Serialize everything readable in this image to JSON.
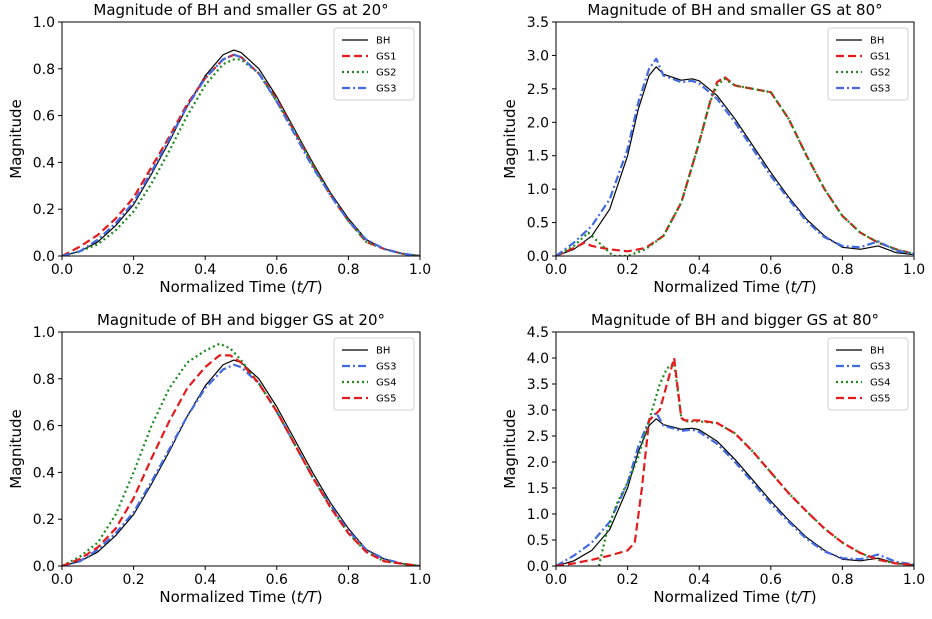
{
  "chart_data": [
    {
      "type": "line",
      "title": "Magnitude of BH and smaller GS at 20°",
      "xlabel": "Normalized Time (t/T)",
      "ylabel": "Magnitude",
      "xlim": [
        0,
        1
      ],
      "ylim": [
        0,
        1
      ],
      "xticks": [
        "0.0",
        "0.2",
        "0.4",
        "0.6",
        "0.8",
        "1.0"
      ],
      "yticks": [
        "0.0",
        "0.2",
        "0.4",
        "0.6",
        "0.8",
        "1.0"
      ],
      "legend_position": "top-right",
      "grid": false,
      "series": [
        {
          "name": "BH",
          "color": "#000000",
          "style": "solid",
          "x": [
            0,
            0.05,
            0.1,
            0.15,
            0.2,
            0.25,
            0.3,
            0.35,
            0.4,
            0.45,
            0.48,
            0.5,
            0.55,
            0.6,
            0.65,
            0.7,
            0.75,
            0.8,
            0.85,
            0.9,
            0.95,
            1.0
          ],
          "y": [
            0.0,
            0.02,
            0.06,
            0.13,
            0.22,
            0.35,
            0.49,
            0.64,
            0.77,
            0.86,
            0.88,
            0.87,
            0.8,
            0.68,
            0.54,
            0.4,
            0.27,
            0.16,
            0.07,
            0.03,
            0.01,
            0.0
          ]
        },
        {
          "name": "GS1",
          "color": "#e41a1c",
          "style": "dashed",
          "x": [
            0,
            0.05,
            0.1,
            0.15,
            0.2,
            0.25,
            0.3,
            0.35,
            0.4,
            0.45,
            0.48,
            0.5,
            0.55,
            0.6,
            0.65,
            0.7,
            0.75,
            0.8,
            0.85,
            0.9,
            0.95,
            1.0
          ],
          "y": [
            0.0,
            0.04,
            0.09,
            0.16,
            0.25,
            0.38,
            0.51,
            0.65,
            0.76,
            0.84,
            0.86,
            0.85,
            0.78,
            0.67,
            0.53,
            0.39,
            0.26,
            0.15,
            0.06,
            0.03,
            0.01,
            0.0
          ]
        },
        {
          "name": "GS2",
          "color": "#1a8a1a",
          "style": "dotted",
          "x": [
            0,
            0.05,
            0.1,
            0.15,
            0.2,
            0.25,
            0.3,
            0.35,
            0.4,
            0.45,
            0.48,
            0.5,
            0.55,
            0.6,
            0.65,
            0.7,
            0.75,
            0.8,
            0.85,
            0.9,
            0.95,
            1.0
          ],
          "y": [
            0.0,
            0.02,
            0.05,
            0.11,
            0.19,
            0.31,
            0.45,
            0.6,
            0.73,
            0.82,
            0.84,
            0.84,
            0.78,
            0.66,
            0.53,
            0.39,
            0.26,
            0.15,
            0.06,
            0.03,
            0.01,
            0.0
          ]
        },
        {
          "name": "GS3",
          "color": "#4169e1",
          "style": "dashdot",
          "x": [
            0,
            0.05,
            0.1,
            0.15,
            0.2,
            0.25,
            0.3,
            0.35,
            0.4,
            0.45,
            0.48,
            0.5,
            0.55,
            0.6,
            0.65,
            0.7,
            0.75,
            0.8,
            0.85,
            0.9,
            0.95,
            1.0
          ],
          "y": [
            0.0,
            0.02,
            0.07,
            0.14,
            0.23,
            0.36,
            0.5,
            0.64,
            0.76,
            0.84,
            0.86,
            0.85,
            0.78,
            0.66,
            0.52,
            0.38,
            0.26,
            0.15,
            0.07,
            0.03,
            0.01,
            0.0
          ]
        }
      ]
    },
    {
      "type": "line",
      "title": "Magnitude of BH and smaller GS at 80°",
      "xlabel": "Normalized Time (t/T)",
      "ylabel": "Magnitude",
      "xlim": [
        0,
        1
      ],
      "ylim": [
        0,
        3.5
      ],
      "xticks": [
        "0.0",
        "0.2",
        "0.4",
        "0.6",
        "0.8",
        "1.0"
      ],
      "yticks": [
        "0.0",
        "0.5",
        "1.0",
        "1.5",
        "2.0",
        "2.5",
        "3.0",
        "3.5"
      ],
      "legend_position": "top-right",
      "grid": false,
      "series": [
        {
          "name": "BH",
          "color": "#000000",
          "style": "solid",
          "x": [
            0,
            0.05,
            0.1,
            0.15,
            0.2,
            0.23,
            0.26,
            0.28,
            0.3,
            0.35,
            0.38,
            0.4,
            0.45,
            0.5,
            0.55,
            0.6,
            0.65,
            0.7,
            0.75,
            0.8,
            0.85,
            0.9,
            0.95,
            1.0
          ],
          "y": [
            0.0,
            0.1,
            0.3,
            0.7,
            1.5,
            2.2,
            2.7,
            2.83,
            2.72,
            2.63,
            2.65,
            2.62,
            2.4,
            2.05,
            1.65,
            1.25,
            0.88,
            0.55,
            0.3,
            0.13,
            0.1,
            0.15,
            0.05,
            0.02
          ]
        },
        {
          "name": "GS1",
          "color": "#e41a1c",
          "style": "dashed",
          "x": [
            0,
            0.05,
            0.08,
            0.1,
            0.15,
            0.2,
            0.25,
            0.3,
            0.35,
            0.4,
            0.43,
            0.45,
            0.47,
            0.5,
            0.55,
            0.6,
            0.65,
            0.7,
            0.75,
            0.8,
            0.85,
            0.9,
            0.95,
            1.0
          ],
          "y": [
            0.0,
            0.12,
            0.2,
            0.15,
            0.1,
            0.07,
            0.12,
            0.3,
            0.8,
            1.7,
            2.3,
            2.6,
            2.68,
            2.55,
            2.5,
            2.45,
            2.05,
            1.5,
            1.0,
            0.6,
            0.35,
            0.2,
            0.1,
            0.03
          ]
        },
        {
          "name": "GS2",
          "color": "#1a8a1a",
          "style": "dotted",
          "x": [
            0,
            0.05,
            0.09,
            0.12,
            0.16,
            0.2,
            0.25,
            0.3,
            0.35,
            0.4,
            0.43,
            0.45,
            0.47,
            0.5,
            0.55,
            0.6,
            0.65,
            0.7,
            0.75,
            0.8,
            0.85,
            0.9,
            0.95,
            1.0
          ],
          "y": [
            0.0,
            0.15,
            0.35,
            0.2,
            0.0,
            0.0,
            0.1,
            0.3,
            0.8,
            1.7,
            2.3,
            2.55,
            2.65,
            2.55,
            2.5,
            2.45,
            2.05,
            1.5,
            1.0,
            0.6,
            0.35,
            0.2,
            0.1,
            0.03
          ]
        },
        {
          "name": "GS3",
          "color": "#4169e1",
          "style": "dashdot",
          "x": [
            0,
            0.05,
            0.1,
            0.15,
            0.2,
            0.23,
            0.26,
            0.28,
            0.3,
            0.35,
            0.38,
            0.4,
            0.45,
            0.5,
            0.55,
            0.6,
            0.65,
            0.7,
            0.75,
            0.8,
            0.85,
            0.9,
            0.95,
            1.0
          ],
          "y": [
            0.0,
            0.2,
            0.45,
            0.85,
            1.6,
            2.3,
            2.8,
            2.95,
            2.7,
            2.6,
            2.62,
            2.58,
            2.35,
            2.0,
            1.6,
            1.2,
            0.85,
            0.52,
            0.28,
            0.15,
            0.13,
            0.22,
            0.08,
            0.03
          ]
        }
      ]
    },
    {
      "type": "line",
      "title": "Magnitude of BH and bigger GS at 20°",
      "xlabel": "Normalized Time (t/T)",
      "ylabel": "Magnitude",
      "xlim": [
        0,
        1
      ],
      "ylim": [
        0,
        1
      ],
      "xticks": [
        "0.0",
        "0.2",
        "0.4",
        "0.6",
        "0.8",
        "1.0"
      ],
      "yticks": [
        "0.0",
        "0.2",
        "0.4",
        "0.6",
        "0.8",
        "1.0"
      ],
      "legend_position": "top-right",
      "grid": false,
      "series": [
        {
          "name": "BH",
          "color": "#000000",
          "style": "solid",
          "x": [
            0,
            0.05,
            0.1,
            0.15,
            0.2,
            0.25,
            0.3,
            0.35,
            0.4,
            0.45,
            0.48,
            0.5,
            0.55,
            0.6,
            0.65,
            0.7,
            0.75,
            0.8,
            0.85,
            0.9,
            0.95,
            1.0
          ],
          "y": [
            0.0,
            0.02,
            0.06,
            0.13,
            0.22,
            0.35,
            0.49,
            0.64,
            0.77,
            0.86,
            0.88,
            0.87,
            0.8,
            0.68,
            0.54,
            0.4,
            0.27,
            0.16,
            0.07,
            0.03,
            0.01,
            0.0
          ]
        },
        {
          "name": "GS3",
          "color": "#4169e1",
          "style": "dashdot",
          "x": [
            0,
            0.05,
            0.1,
            0.15,
            0.2,
            0.25,
            0.3,
            0.35,
            0.4,
            0.45,
            0.48,
            0.5,
            0.55,
            0.6,
            0.65,
            0.7,
            0.75,
            0.8,
            0.85,
            0.9,
            0.95,
            1.0
          ],
          "y": [
            0.0,
            0.02,
            0.07,
            0.14,
            0.23,
            0.36,
            0.5,
            0.64,
            0.76,
            0.84,
            0.86,
            0.85,
            0.78,
            0.66,
            0.52,
            0.38,
            0.26,
            0.15,
            0.07,
            0.03,
            0.01,
            0.0
          ]
        },
        {
          "name": "GS4",
          "color": "#1a8a1a",
          "style": "dotted",
          "x": [
            0,
            0.05,
            0.1,
            0.15,
            0.2,
            0.25,
            0.3,
            0.35,
            0.4,
            0.44,
            0.47,
            0.5,
            0.55,
            0.6,
            0.65,
            0.7,
            0.75,
            0.8,
            0.85,
            0.9,
            0.95,
            1.0
          ],
          "y": [
            0.0,
            0.04,
            0.1,
            0.22,
            0.4,
            0.6,
            0.76,
            0.87,
            0.92,
            0.95,
            0.93,
            0.88,
            0.78,
            0.66,
            0.52,
            0.38,
            0.25,
            0.14,
            0.06,
            0.02,
            0.01,
            0.0
          ]
        },
        {
          "name": "GS5",
          "color": "#e41a1c",
          "style": "dashed",
          "x": [
            0,
            0.05,
            0.1,
            0.15,
            0.2,
            0.25,
            0.3,
            0.35,
            0.4,
            0.44,
            0.47,
            0.5,
            0.55,
            0.6,
            0.65,
            0.7,
            0.75,
            0.8,
            0.85,
            0.9,
            0.95,
            1.0
          ],
          "y": [
            0.0,
            0.03,
            0.08,
            0.16,
            0.29,
            0.46,
            0.62,
            0.76,
            0.85,
            0.9,
            0.9,
            0.87,
            0.78,
            0.66,
            0.52,
            0.38,
            0.25,
            0.14,
            0.06,
            0.02,
            0.01,
            0.0
          ]
        }
      ]
    },
    {
      "type": "line",
      "title": "Magnitude of BH and bigger GS at 80°",
      "xlabel": "Normalized Time (t/T)",
      "ylabel": "Magnitude",
      "xlim": [
        0,
        1
      ],
      "ylim": [
        0,
        4.5
      ],
      "xticks": [
        "0.0",
        "0.2",
        "0.4",
        "0.6",
        "0.8",
        "1.0"
      ],
      "yticks": [
        "0.0",
        "0.5",
        "1.0",
        "1.5",
        "2.0",
        "2.5",
        "3.0",
        "3.5",
        "4.0",
        "4.5"
      ],
      "legend_position": "top-right",
      "grid": false,
      "series": [
        {
          "name": "BH",
          "color": "#000000",
          "style": "solid",
          "x": [
            0,
            0.05,
            0.1,
            0.15,
            0.2,
            0.23,
            0.26,
            0.28,
            0.3,
            0.35,
            0.38,
            0.4,
            0.45,
            0.5,
            0.55,
            0.6,
            0.65,
            0.7,
            0.75,
            0.8,
            0.85,
            0.9,
            0.95,
            1.0
          ],
          "y": [
            0.0,
            0.1,
            0.3,
            0.7,
            1.5,
            2.2,
            2.7,
            2.83,
            2.72,
            2.63,
            2.65,
            2.62,
            2.4,
            2.05,
            1.65,
            1.25,
            0.88,
            0.55,
            0.3,
            0.13,
            0.1,
            0.15,
            0.05,
            0.02
          ]
        },
        {
          "name": "GS3",
          "color": "#4169e1",
          "style": "dashdot",
          "x": [
            0,
            0.05,
            0.1,
            0.15,
            0.2,
            0.23,
            0.26,
            0.28,
            0.3,
            0.35,
            0.38,
            0.4,
            0.45,
            0.5,
            0.55,
            0.6,
            0.65,
            0.7,
            0.75,
            0.8,
            0.85,
            0.9,
            0.95,
            1.0
          ],
          "y": [
            0.0,
            0.2,
            0.45,
            0.85,
            1.6,
            2.3,
            2.8,
            2.95,
            2.7,
            2.6,
            2.62,
            2.58,
            2.35,
            2.0,
            1.6,
            1.2,
            0.85,
            0.52,
            0.28,
            0.15,
            0.13,
            0.22,
            0.08,
            0.03
          ]
        },
        {
          "name": "GS4",
          "color": "#1a8a1a",
          "style": "dotted",
          "x": [
            0.12,
            0.14,
            0.17,
            0.2,
            0.23,
            0.26,
            0.29,
            0.31,
            0.33,
            0.35,
            0.36,
            0.4,
            0.45,
            0.5,
            0.55,
            0.6,
            0.65,
            0.7,
            0.75,
            0.8,
            0.85,
            0.9,
            0.95,
            1.0
          ],
          "y": [
            0.0,
            0.6,
            1.2,
            1.6,
            2.1,
            2.8,
            3.5,
            3.8,
            3.9,
            2.85,
            2.78,
            2.78,
            2.75,
            2.55,
            2.2,
            1.8,
            1.4,
            1.05,
            0.72,
            0.45,
            0.25,
            0.12,
            0.05,
            0.02
          ]
        },
        {
          "name": "GS5",
          "color": "#e41a1c",
          "style": "dashed",
          "x": [
            0,
            0.05,
            0.1,
            0.15,
            0.2,
            0.22,
            0.24,
            0.26,
            0.29,
            0.31,
            0.33,
            0.35,
            0.36,
            0.4,
            0.45,
            0.5,
            0.55,
            0.6,
            0.65,
            0.7,
            0.75,
            0.8,
            0.85,
            0.9,
            0.95,
            1.0
          ],
          "y": [
            0.0,
            0.05,
            0.12,
            0.2,
            0.3,
            0.45,
            1.5,
            2.8,
            3.0,
            3.5,
            4.0,
            2.85,
            2.8,
            2.8,
            2.75,
            2.55,
            2.2,
            1.8,
            1.4,
            1.05,
            0.72,
            0.45,
            0.25,
            0.12,
            0.05,
            0.02
          ]
        }
      ]
    }
  ]
}
